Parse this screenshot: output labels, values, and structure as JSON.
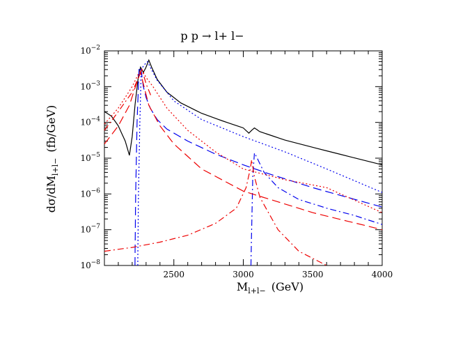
{
  "chart_data": {
    "type": "line",
    "title": "p  p  →  l+  l−",
    "xlabel": {
      "main": "M",
      "sub": "l+l−",
      "unit": "(GeV)"
    },
    "ylabel": {
      "main": "dσ/dM",
      "sub": "l+l−",
      "unit": "(fb/GeV)"
    },
    "x_range": [
      2000,
      4000
    ],
    "y_range": [
      1e-08,
      0.01
    ],
    "y_scale": "log",
    "x_ticks": [
      2500,
      3000,
      3500,
      4000
    ],
    "x_tick_labels": [
      "2500",
      "3000",
      "3500",
      "4000"
    ],
    "y_ticks": [
      1e-08,
      1e-07,
      1e-06,
      1e-05,
      0.0001,
      0.001,
      0.01
    ],
    "y_tick_labels": [
      {
        "base": "10",
        "exp": "−8"
      },
      {
        "base": "10",
        "exp": "−7"
      },
      {
        "base": "10",
        "exp": "−6"
      },
      {
        "base": "10",
        "exp": "−5"
      },
      {
        "base": "10",
        "exp": "−4"
      },
      {
        "base": "10",
        "exp": "−3"
      },
      {
        "base": "10",
        "exp": "−2"
      }
    ],
    "grid": false,
    "series": [
      {
        "color": "#000000",
        "dash": "solid",
        "x": [
          2000,
          2050,
          2100,
          2150,
          2180,
          2200,
          2220,
          2245,
          2260,
          2280,
          2300,
          2320,
          2340,
          2380,
          2450,
          2550,
          2700,
          2850,
          3000,
          3040,
          3060,
          3080,
          3120,
          3300,
          3600,
          4000
        ],
        "y": [
          0.0002,
          0.00015,
          8e-05,
          3e-05,
          1.2e-05,
          4e-05,
          0.0003,
          0.002,
          0.0035,
          0.0025,
          0.0035,
          0.0055,
          0.0035,
          0.0016,
          0.0007,
          0.00035,
          0.00018,
          0.00011,
          7e-05,
          5e-05,
          6e-05,
          7e-05,
          5.5e-05,
          3.2e-05,
          1.6e-05,
          6.5e-06
        ]
      },
      {
        "color": "#0000ee",
        "dash": "dashed",
        "x": [
          2220,
          2225,
          2235,
          2250,
          2265,
          2280,
          2300,
          2330,
          2380,
          2450,
          2600,
          2800,
          3000,
          3200,
          3500,
          4000
        ],
        "y": [
          1e-08,
          1e-06,
          0.0001,
          0.0035,
          0.0028,
          0.001,
          0.0005,
          0.00025,
          0.00012,
          6.5e-05,
          3e-05,
          1.3e-05,
          6.5e-06,
          3.5e-06,
          1.5e-06,
          4.3e-07
        ]
      },
      {
        "color": "#0000ee",
        "dash": "dotted",
        "x": [
          2240,
          2245,
          2255,
          2265,
          2285,
          2310,
          2330,
          2380,
          2500,
          2700,
          3000,
          3300,
          3600,
          4000
        ],
        "y": [
          1e-08,
          1e-06,
          0.0001,
          0.003,
          0.004,
          0.005,
          0.0035,
          0.0015,
          0.0004,
          0.00012,
          4e-05,
          1.5e-05,
          5e-06,
          1.1e-06
        ]
      },
      {
        "color": "#0000ee",
        "dash": "dashdot",
        "x": [
          3055,
          3060,
          3068,
          3080,
          3100,
          3150,
          3250,
          3400,
          3600,
          3800,
          4000
        ],
        "y": [
          1e-08,
          1e-07,
          3e-06,
          1.4e-05,
          1e-05,
          4e-06,
          1.5e-06,
          7e-07,
          4e-07,
          2.5e-07,
          1.4e-07
        ]
      },
      {
        "color": "#ee0000",
        "dash": "dashed",
        "x": [
          2000,
          2100,
          2180,
          2230,
          2260,
          2280,
          2320,
          2400,
          2500,
          2700,
          3000,
          3500,
          4000
        ],
        "y": [
          2.5e-05,
          8e-05,
          0.0003,
          0.0012,
          0.0025,
          0.0012,
          0.0003,
          8e-05,
          2.5e-05,
          5e-06,
          1.2e-06,
          3e-07,
          1e-07
        ]
      },
      {
        "color": "#ee0000",
        "dash": "dotted",
        "x": [
          2000,
          2100,
          2200,
          2250,
          2270,
          2300,
          2350,
          2450,
          2600,
          2800,
          3000,
          3300,
          3600,
          4000
        ],
        "y": [
          9e-05,
          0.00025,
          0.001,
          0.0025,
          0.003,
          0.0018,
          0.001,
          0.00025,
          6e-05,
          1.5e-05,
          5e-06,
          2.5e-06,
          1.5e-06,
          3e-07
        ]
      },
      {
        "color": "#ee0000",
        "dash": "dashdot",
        "x": [
          2000,
          2200,
          2400,
          2600,
          2800,
          2950,
          3020,
          3050,
          3060,
          3080,
          3120,
          3250,
          3400,
          3600
        ],
        "y": [
          2.5e-08,
          3.2e-08,
          4.5e-08,
          7e-08,
          1.5e-07,
          4e-07,
          1.5e-06,
          5e-06,
          9e-06,
          3e-06,
          8e-07,
          1e-07,
          2.5e-08,
          1e-08
        ]
      },
      {
        "color": "#ee0000",
        "dash": "dashdot",
        "x": [
          2000,
          2100,
          2200,
          2250,
          2270,
          2300,
          2340
        ],
        "y": [
          6e-05,
          0.0002,
          0.0007,
          0.002,
          0.003,
          0.0012,
          0.0005
        ]
      }
    ]
  }
}
